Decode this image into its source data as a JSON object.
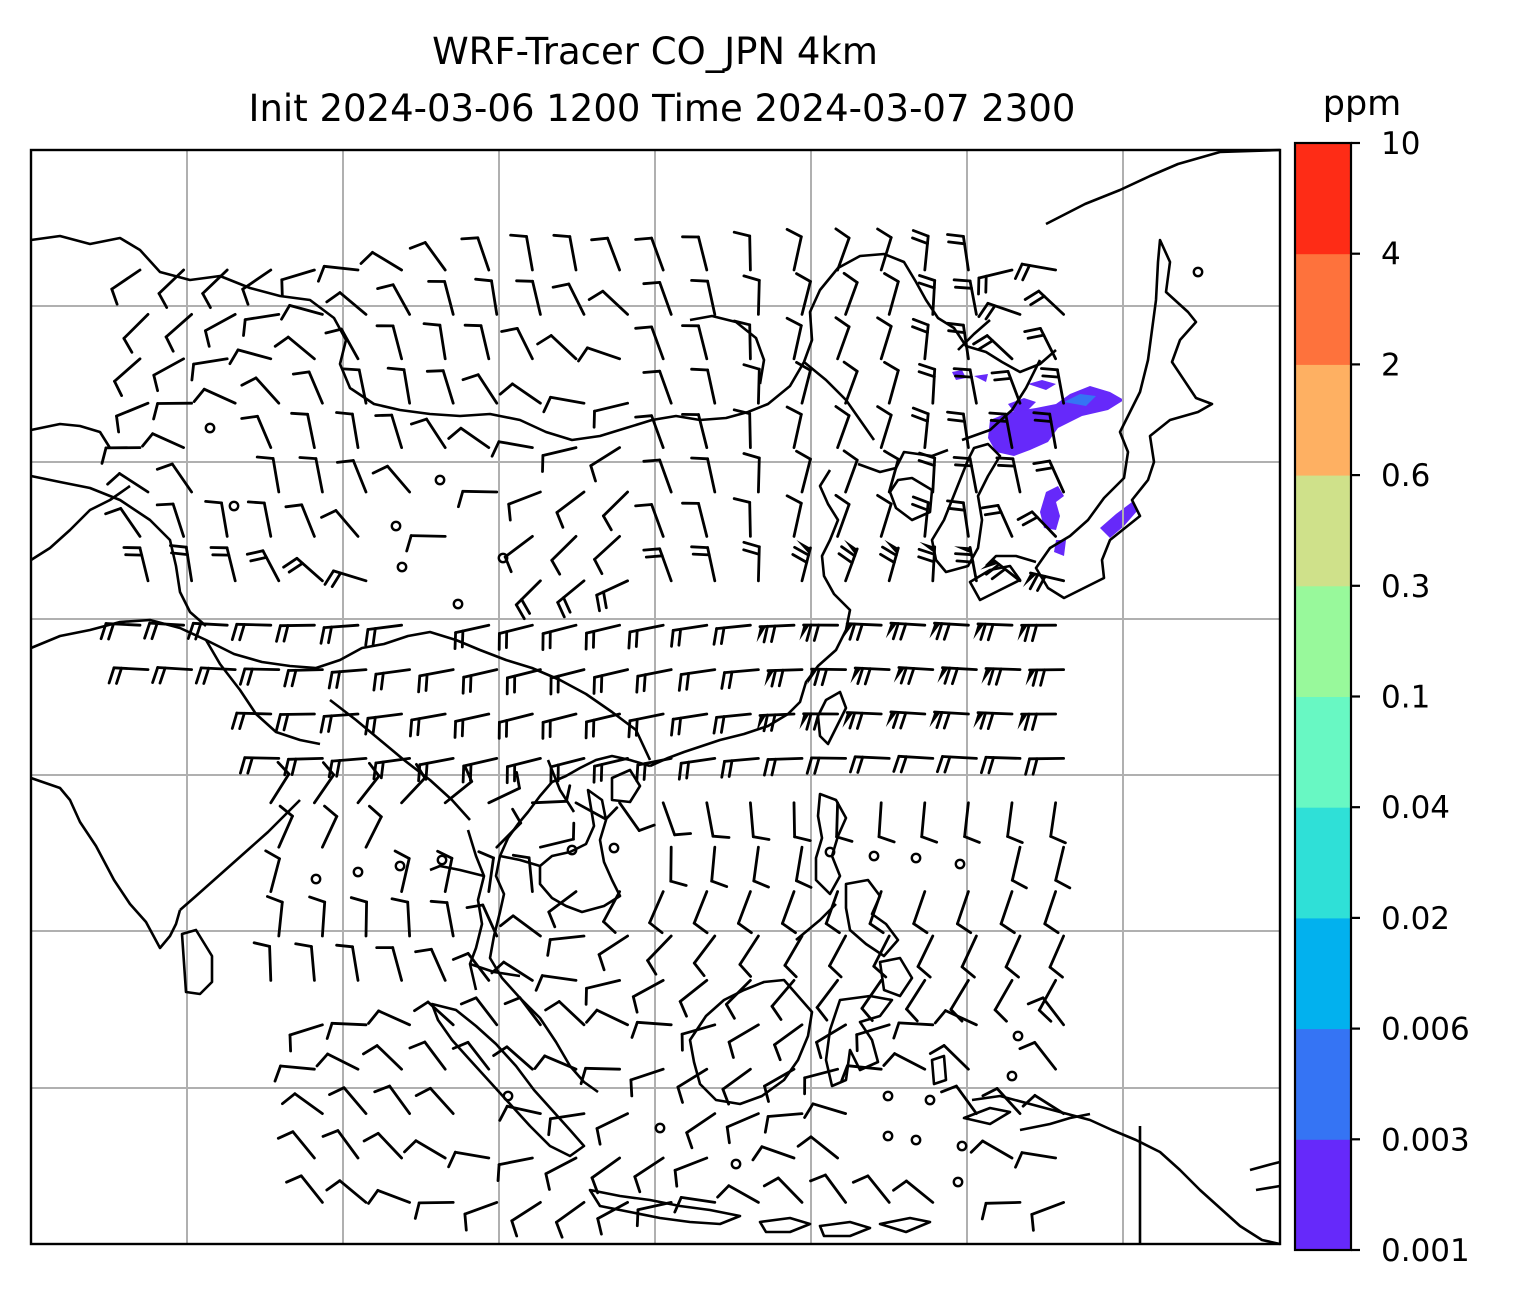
{
  "chart_data": {
    "type": "map-contour",
    "title_line1": "WRF-Tracer CO_JPN 4km",
    "title_line2": "Init 2024-03-06 1200 Time 2024-03-07 2300",
    "colorbar": {
      "unit": "ppm",
      "levels": [
        "0.001",
        "0.003",
        "0.006",
        "0.02",
        "0.04",
        "0.1",
        "0.3",
        "0.6",
        "2",
        "4",
        "10"
      ],
      "colors": [
        "#6629fa",
        "#3574f4",
        "#02b1ee",
        "#2fe0d7",
        "#68f8c3",
        "#98f99b",
        "#cfe18a",
        "#feb062",
        "#fe723c",
        "#fe2c16"
      ]
    },
    "grid": true,
    "background_fields": [
      "coastlines",
      "wind barbs"
    ],
    "line_color": "#000000",
    "grid_color": "#b0b0b0",
    "plume_color": "#6629fa"
  }
}
